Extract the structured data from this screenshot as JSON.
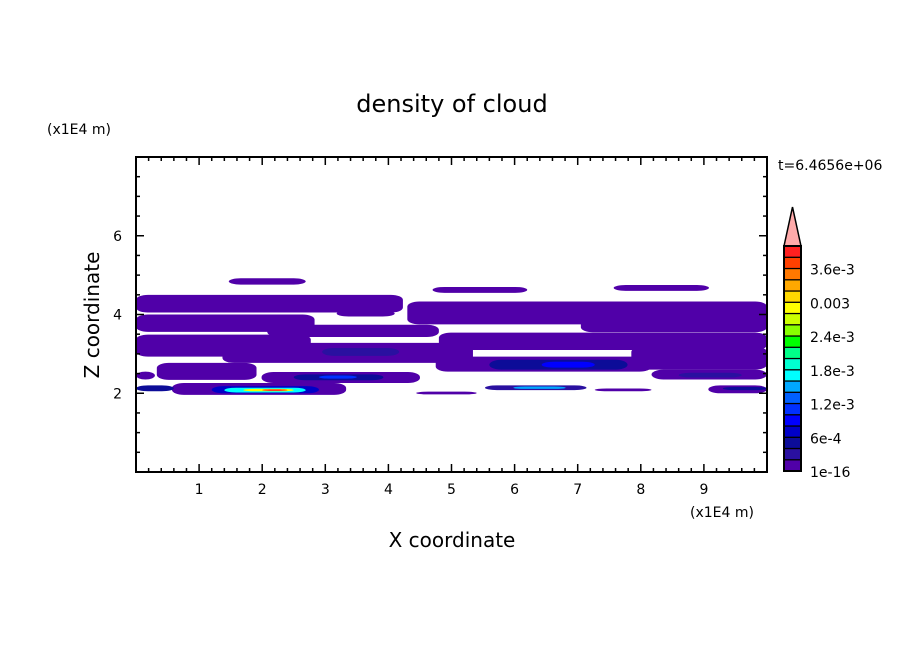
{
  "chart_data": {
    "type": "heatmap",
    "subtype": "filled-contour",
    "title": "density of cloud",
    "xlabel": "X coordinate",
    "ylabel": "Z coordinate",
    "x_unit_label": "(x1E4 m)",
    "y_unit_label": "(x1E4 m)",
    "time_label": "t=6.4656e+06",
    "xlim": [
      0,
      10
    ],
    "ylim": [
      0,
      8
    ],
    "x_ticks": [
      1,
      2,
      3,
      4,
      5,
      6,
      7,
      8,
      9
    ],
    "y_ticks": [
      2,
      4,
      6
    ],
    "colorbar": {
      "labels": [
        "1e-16",
        "6e-4",
        "1.2e-3",
        "1.8e-3",
        "2.4e-3",
        "0.003",
        "3.6e-3"
      ],
      "label_levels": [
        0,
        3,
        6,
        9,
        12,
        15,
        18
      ],
      "colors": [
        "#5000a8",
        "#2a10a0",
        "#0c0c98",
        "#0000c8",
        "#0000ff",
        "#0030ff",
        "#0060ff",
        "#00a8ff",
        "#00ffff",
        "#00ffd0",
        "#00ff88",
        "#00ff00",
        "#88ff00",
        "#ccff00",
        "#ffff00",
        "#ffd800",
        "#ffa800",
        "#ff7800",
        "#ff4000",
        "#ff2020"
      ],
      "over_color": "#ffaaaa"
    },
    "regions": [
      {
        "x": [
          1.47,
          2.69
        ],
        "z": [
          4.76,
          4.92
        ],
        "level": 0
      },
      {
        "x": [
          0,
          4.23
        ],
        "z": [
          4.05,
          4.5
        ],
        "level": 0
      },
      {
        "x": [
          4.7,
          6.2
        ],
        "z": [
          4.55,
          4.7
        ],
        "level": 0
      },
      {
        "x": [
          7.57,
          9.08
        ],
        "z": [
          4.6,
          4.75
        ],
        "level": 0
      },
      {
        "x": [
          4.3,
          10
        ],
        "z": [
          3.75,
          4.33
        ],
        "level": 0
      },
      {
        "x": [
          0,
          2.83
        ],
        "z": [
          3.56,
          4.0
        ],
        "level": 0
      },
      {
        "x": [
          3.18,
          4.1
        ],
        "z": [
          3.95,
          4.1
        ],
        "level": 0
      },
      {
        "x": [
          2.08,
          4.8
        ],
        "z": [
          3.43,
          3.74
        ],
        "level": 0
      },
      {
        "x": [
          7.05,
          10
        ],
        "z": [
          3.55,
          3.95
        ],
        "level": 0
      },
      {
        "x": [
          0,
          2.77
        ],
        "z": [
          2.93,
          3.49
        ],
        "level": 0
      },
      {
        "x": [
          4.8,
          10
        ],
        "z": [
          3.1,
          3.54
        ],
        "level": 0
      },
      {
        "x": [
          1.37,
          5.34
        ],
        "z": [
          2.77,
          3.28
        ],
        "level": 0
      },
      {
        "x": [
          2.95,
          4.17
        ],
        "z": [
          2.95,
          3.15
        ],
        "level": 1
      },
      {
        "x": [
          7.85,
          10
        ],
        "z": [
          2.6,
          3.18
        ],
        "level": 0
      },
      {
        "x": [
          4.75,
          8.17
        ],
        "z": [
          2.55,
          2.93
        ],
        "level": 0
      },
      {
        "x": [
          5.6,
          7.79
        ],
        "z": [
          2.6,
          2.85
        ],
        "level": 2
      },
      {
        "x": [
          6.43,
          7.27
        ],
        "z": [
          2.65,
          2.8
        ],
        "level": 4
      },
      {
        "x": [
          0.33,
          1.91
        ],
        "z": [
          2.34,
          2.77
        ],
        "level": 0
      },
      {
        "x": [
          0,
          0.3
        ],
        "z": [
          2.35,
          2.55
        ],
        "level": 0
      },
      {
        "x": [
          1.99,
          4.5
        ],
        "z": [
          2.26,
          2.54
        ],
        "level": 0
      },
      {
        "x": [
          2.5,
          3.92
        ],
        "z": [
          2.33,
          2.48
        ],
        "level": 2
      },
      {
        "x": [
          2.9,
          3.5
        ],
        "z": [
          2.37,
          2.45
        ],
        "level": 5
      },
      {
        "x": [
          8.17,
          10
        ],
        "z": [
          2.35,
          2.6
        ],
        "level": 0
      },
      {
        "x": [
          8.6,
          9.6
        ],
        "z": [
          2.4,
          2.52
        ],
        "level": 1
      },
      {
        "x": [
          0.57,
          3.33
        ],
        "z": [
          1.96,
          2.26
        ],
        "level": 0
      },
      {
        "x": [
          1.2,
          2.9
        ],
        "z": [
          2.0,
          2.18
        ],
        "level": 3
      },
      {
        "x": [
          1.4,
          2.69
        ],
        "z": [
          2.02,
          2.14
        ],
        "level": 8
      },
      {
        "x": [
          1.7,
          2.5
        ],
        "z": [
          2.05,
          2.11
        ],
        "level": 14
      },
      {
        "x": [
          2.0,
          2.4
        ],
        "z": [
          2.06,
          2.1
        ],
        "level": 19
      },
      {
        "x": [
          0,
          0.6
        ],
        "z": [
          2.05,
          2.2
        ],
        "level": 2
      },
      {
        "x": [
          5.53,
          7.14
        ],
        "z": [
          2.08,
          2.2
        ],
        "level": 1
      },
      {
        "x": [
          5.98,
          6.81
        ],
        "z": [
          2.11,
          2.17
        ],
        "level": 7
      },
      {
        "x": [
          4.44,
          5.4
        ],
        "z": [
          1.97,
          2.04
        ],
        "level": 0
      },
      {
        "x": [
          7.27,
          8.17
        ],
        "z": [
          2.05,
          2.12
        ],
        "level": 0
      },
      {
        "x": [
          9.07,
          10
        ],
        "z": [
          2.0,
          2.2
        ],
        "level": 0
      },
      {
        "x": [
          9.3,
          10
        ],
        "z": [
          2.08,
          2.16
        ],
        "level": 2
      }
    ]
  }
}
